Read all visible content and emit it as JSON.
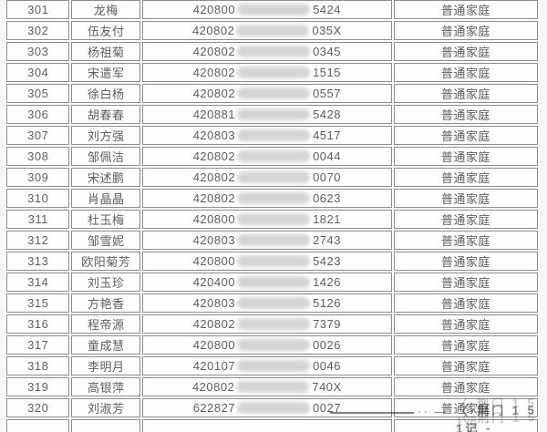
{
  "table": {
    "category_label": "普通家庭",
    "rows": [
      {
        "num": "301",
        "name": "龙梅",
        "id_prefix": "420800",
        "id_suffix": "5424",
        "category": "普通家庭"
      },
      {
        "num": "302",
        "name": "伍友付",
        "id_prefix": "420802",
        "id_suffix": "035X",
        "category": "普通家庭"
      },
      {
        "num": "303",
        "name": "杨祖菊",
        "id_prefix": "420802",
        "id_suffix": "0345",
        "category": "普通家庭"
      },
      {
        "num": "304",
        "name": "宋遣军",
        "id_prefix": "420802",
        "id_suffix": "1515",
        "category": "普通家庭"
      },
      {
        "num": "305",
        "name": "徐白杨",
        "id_prefix": "420802",
        "id_suffix": "0557",
        "category": "普通家庭"
      },
      {
        "num": "306",
        "name": "胡春春",
        "id_prefix": "420881",
        "id_suffix": "5428",
        "category": "普通家庭"
      },
      {
        "num": "307",
        "name": "刘方强",
        "id_prefix": "420803",
        "id_suffix": "4517",
        "category": "普通家庭"
      },
      {
        "num": "308",
        "name": "邹佩洁",
        "id_prefix": "420802",
        "id_suffix": "0044",
        "category": "普通家庭"
      },
      {
        "num": "309",
        "name": "宋述鹏",
        "id_prefix": "420802",
        "id_suffix": "0070",
        "category": "普通家庭"
      },
      {
        "num": "310",
        "name": "肖晶晶",
        "id_prefix": "420802",
        "id_suffix": "0623",
        "category": "普通家庭"
      },
      {
        "num": "311",
        "name": "杜玉梅",
        "id_prefix": "420800",
        "id_suffix": "1821",
        "category": "普通家庭"
      },
      {
        "num": "312",
        "name": "邹雪妮",
        "id_prefix": "420803",
        "id_suffix": "2743",
        "category": "普通家庭"
      },
      {
        "num": "313",
        "name": "欧阳菊芳",
        "id_prefix": "420800",
        "id_suffix": "5423",
        "category": "普通家庭"
      },
      {
        "num": "314",
        "name": "刘玉珍",
        "id_prefix": "420400",
        "id_suffix": "1426",
        "category": "普通家庭"
      },
      {
        "num": "315",
        "name": "方艳香",
        "id_prefix": "420803",
        "id_suffix": "5126",
        "category": "普通家庭"
      },
      {
        "num": "316",
        "name": "程帝源",
        "id_prefix": "420802",
        "id_suffix": "7379",
        "category": "普通家庭"
      },
      {
        "num": "317",
        "name": "童成慧",
        "id_prefix": "420800",
        "id_suffix": "0026",
        "category": "普通家庭"
      },
      {
        "num": "318",
        "name": "李明月",
        "id_prefix": "420107",
        "id_suffix": "0046",
        "category": "普通家庭"
      },
      {
        "num": "319",
        "name": "高银萍",
        "id_prefix": "420802",
        "id_suffix": "740X",
        "category": "普通家庭"
      },
      {
        "num": "320",
        "name": "刘淑芳",
        "id_prefix": "622827",
        "id_suffix": "0027",
        "category": "普通家庭"
      }
    ]
  },
  "watermark": {
    "dashes": "·· —",
    "text": "〈·荆门 1 5 1记 -"
  },
  "colors": {
    "border": "#8d8d8d",
    "text": "#5e5e5e",
    "blur_block": "#d5d5d5",
    "background": "#ffffff"
  }
}
